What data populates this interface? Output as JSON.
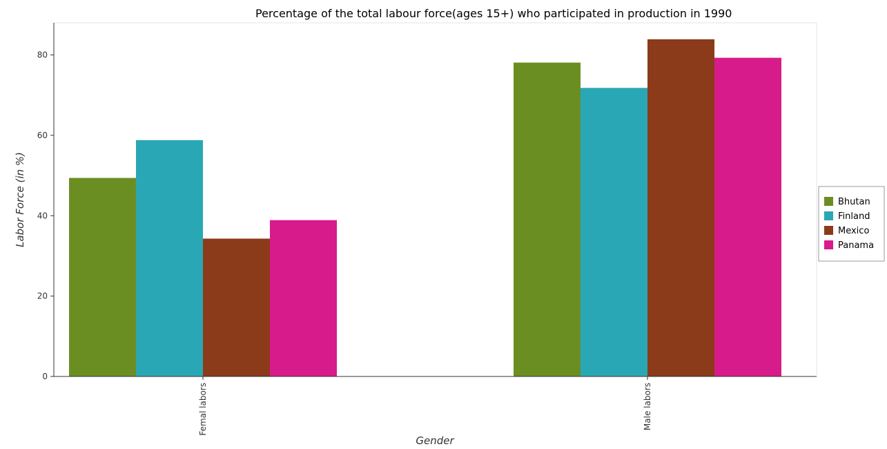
{
  "chart_data": {
    "type": "bar",
    "title": "Percentage of the total labour force(ages 15+) who participated in production in 1990",
    "xlabel": "Gender",
    "ylabel": "Labor Force (in %)",
    "categories": [
      "Femal labors",
      "Male labors"
    ],
    "series": [
      {
        "name": "Bhutan",
        "color": "#6b8e23",
        "values": [
          49.4,
          78.1
        ]
      },
      {
        "name": "Finland",
        "color": "#2aa7b4",
        "values": [
          58.8,
          71.8
        ]
      },
      {
        "name": "Mexico",
        "color": "#8b3a1a",
        "values": [
          34.3,
          83.9
        ]
      },
      {
        "name": "Panama",
        "color": "#d81b8a",
        "values": [
          38.9,
          79.3
        ]
      }
    ],
    "yticks": [
      0,
      20,
      40,
      60,
      80
    ],
    "ylim": [
      0,
      88
    ],
    "grid": false,
    "legend_position": "right"
  }
}
